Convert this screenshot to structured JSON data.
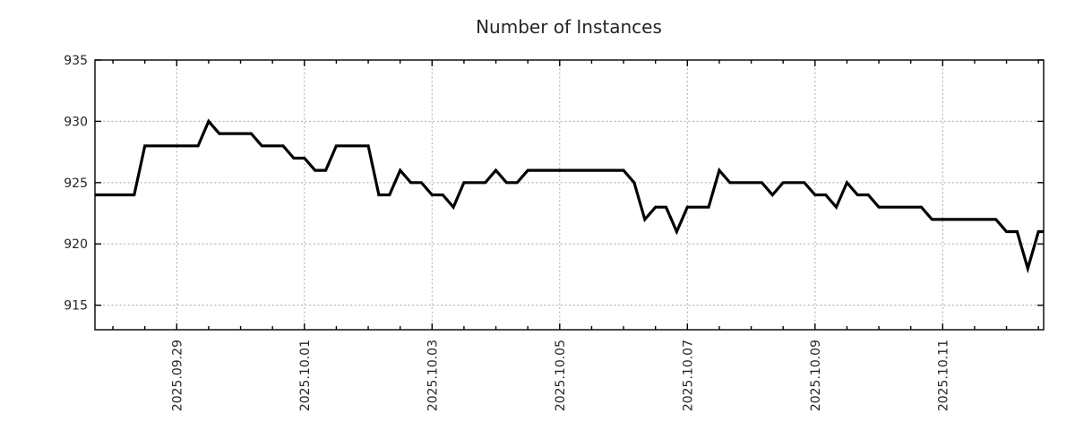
{
  "chart_data": {
    "type": "line",
    "title": "Number of Instances",
    "xlabel": "",
    "ylabel": "",
    "legend": "none",
    "grid": "dotted",
    "ylim": [
      913,
      935
    ],
    "y_ticks": [
      915,
      920,
      925,
      930,
      935
    ],
    "x_tick_labels": [
      "2025.09.29",
      "2025.10.01",
      "2025.10.03",
      "2025.10.05",
      "2025.10.07",
      "2025.10.09",
      "2025.10.11"
    ],
    "x_tick_indices": [
      8,
      20,
      32,
      44,
      56,
      68,
      80
    ],
    "x_minor_tick_every": 3,
    "x_start": "2025-09-27 16:00",
    "x_step_hours": 4,
    "series": [
      {
        "name": "instances",
        "color": "#000000",
        "values": [
          924,
          924,
          924,
          924,
          924,
          928,
          928,
          928,
          928,
          928,
          928,
          930,
          929,
          929,
          929,
          929,
          928,
          928,
          928,
          927,
          927,
          926,
          926,
          928,
          928,
          928,
          928,
          924,
          924,
          926,
          925,
          925,
          924,
          924,
          923,
          925,
          925,
          925,
          926,
          925,
          925,
          926,
          926,
          926,
          926,
          926,
          926,
          926,
          926,
          926,
          926,
          925,
          922,
          923,
          923,
          921,
          923,
          923,
          923,
          926,
          925,
          925,
          925,
          925,
          924,
          925,
          925,
          925,
          924,
          924,
          923,
          925,
          924,
          924,
          923,
          923,
          923,
          923,
          923,
          922,
          922,
          922,
          922,
          922,
          922,
          922,
          921,
          921,
          918,
          921
        ]
      }
    ]
  },
  "colors": {
    "line": "#000000",
    "grid": "#a9a9a9",
    "axis": "#000000",
    "text": "#262626",
    "background": "#ffffff"
  }
}
